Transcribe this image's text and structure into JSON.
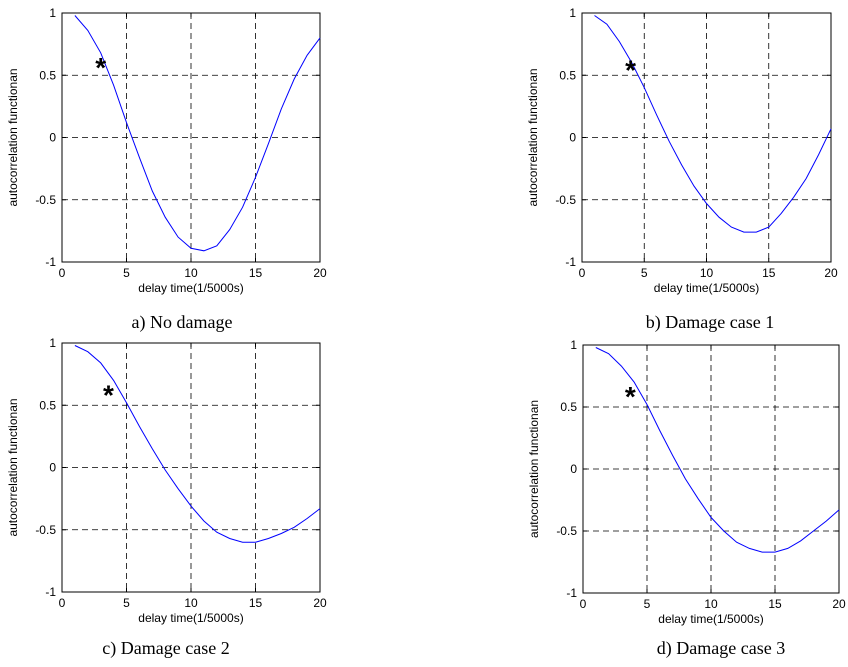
{
  "panels": [
    {
      "caption": "a) No damage",
      "chart_data": {
        "type": "line",
        "xlabel": "delay time(1/5000s)",
        "ylabel": "autocorrelation functionan",
        "xlim": [
          0,
          20
        ],
        "ylim": [
          -1,
          1
        ],
        "xticks": [
          "0",
          "5",
          "10",
          "15",
          "20"
        ],
        "yticks": [
          "-1",
          "-0.5",
          "0",
          "0.5",
          "1"
        ],
        "grid": true,
        "series": [
          {
            "color": "#0000ff",
            "x": [
              1,
              2,
              3,
              4,
              5,
              6,
              7,
              8,
              9,
              10,
              11,
              12,
              13,
              14,
              15,
              16,
              17,
              18,
              19,
              20
            ],
            "values": [
              0.98,
              0.86,
              0.68,
              0.42,
              0.12,
              -0.16,
              -0.43,
              -0.64,
              -0.8,
              -0.89,
              -0.91,
              -0.87,
              -0.74,
              -0.56,
              -0.32,
              -0.05,
              0.23,
              0.47,
              0.66,
              0.8
            ]
          }
        ],
        "annotations": [
          {
            "text": "*",
            "x": 3.0,
            "y": 0.6
          }
        ]
      }
    },
    {
      "caption": "b) Damage case 1",
      "chart_data": {
        "type": "line",
        "xlabel": "delay time(1/5000s)",
        "ylabel": "autocorrelation functionan",
        "xlim": [
          0,
          20
        ],
        "ylim": [
          -1,
          1
        ],
        "xticks": [
          "0",
          "5",
          "10",
          "15",
          "20"
        ],
        "yticks": [
          "-1",
          "-0.5",
          "0",
          "0.5",
          "1"
        ],
        "grid": true,
        "series": [
          {
            "color": "#0000ff",
            "x": [
              1,
              2,
              3,
              4,
              5,
              6,
              7,
              8,
              9,
              10,
              11,
              12,
              13,
              14,
              15,
              16,
              17,
              18,
              19,
              20
            ],
            "values": [
              0.98,
              0.91,
              0.77,
              0.6,
              0.4,
              0.18,
              -0.03,
              -0.22,
              -0.39,
              -0.53,
              -0.64,
              -0.72,
              -0.76,
              -0.76,
              -0.72,
              -0.61,
              -0.48,
              -0.33,
              -0.14,
              0.07
            ]
          }
        ],
        "annotations": [
          {
            "text": "*",
            "x": 3.9,
            "y": 0.58
          }
        ]
      }
    },
    {
      "caption": "c) Damage case 2",
      "chart_data": {
        "type": "line",
        "xlabel": "delay time(1/5000s)",
        "ylabel": "autocorrelation functionan",
        "xlim": [
          0,
          20
        ],
        "ylim": [
          -1,
          1
        ],
        "xticks": [
          "0",
          "5",
          "10",
          "15",
          "20"
        ],
        "yticks": [
          "-1",
          "-0.5",
          "0",
          "0.5",
          "1"
        ],
        "grid": true,
        "series": [
          {
            "color": "#0000ff",
            "x": [
              1,
              2,
              3,
              4,
              5,
              6,
              7,
              8,
              9,
              10,
              11,
              12,
              13,
              14,
              15,
              16,
              17,
              18,
              19,
              20
            ],
            "values": [
              0.98,
              0.93,
              0.84,
              0.7,
              0.52,
              0.33,
              0.15,
              -0.02,
              -0.17,
              -0.31,
              -0.43,
              -0.52,
              -0.57,
              -0.6,
              -0.6,
              -0.57,
              -0.53,
              -0.48,
              -0.41,
              -0.33
            ]
          }
        ],
        "annotations": [
          {
            "text": "*",
            "x": 3.6,
            "y": 0.62
          }
        ]
      }
    },
    {
      "caption": "d) Damage case 3",
      "chart_data": {
        "type": "line",
        "xlabel": "delay time(1/5000s)",
        "ylabel": "autocorrelation functionan",
        "xlim": [
          0,
          20
        ],
        "ylim": [
          -1,
          1
        ],
        "xticks": [
          "0",
          "5",
          "10",
          "15",
          "20"
        ],
        "yticks": [
          "-1",
          "-0.5",
          "0",
          "0.5",
          "1"
        ],
        "grid": true,
        "series": [
          {
            "color": "#0000ff",
            "x": [
              1,
              2,
              3,
              4,
              5,
              6,
              7,
              8,
              9,
              10,
              11,
              12,
              13,
              14,
              15,
              16,
              17,
              18,
              19,
              20
            ],
            "values": [
              0.98,
              0.93,
              0.83,
              0.7,
              0.52,
              0.31,
              0.11,
              -0.08,
              -0.24,
              -0.39,
              -0.5,
              -0.59,
              -0.64,
              -0.67,
              -0.67,
              -0.64,
              -0.58,
              -0.5,
              -0.42,
              -0.33
            ]
          }
        ],
        "annotations": [
          {
            "text": "*",
            "x": 3.7,
            "y": 0.62
          }
        ]
      }
    }
  ]
}
